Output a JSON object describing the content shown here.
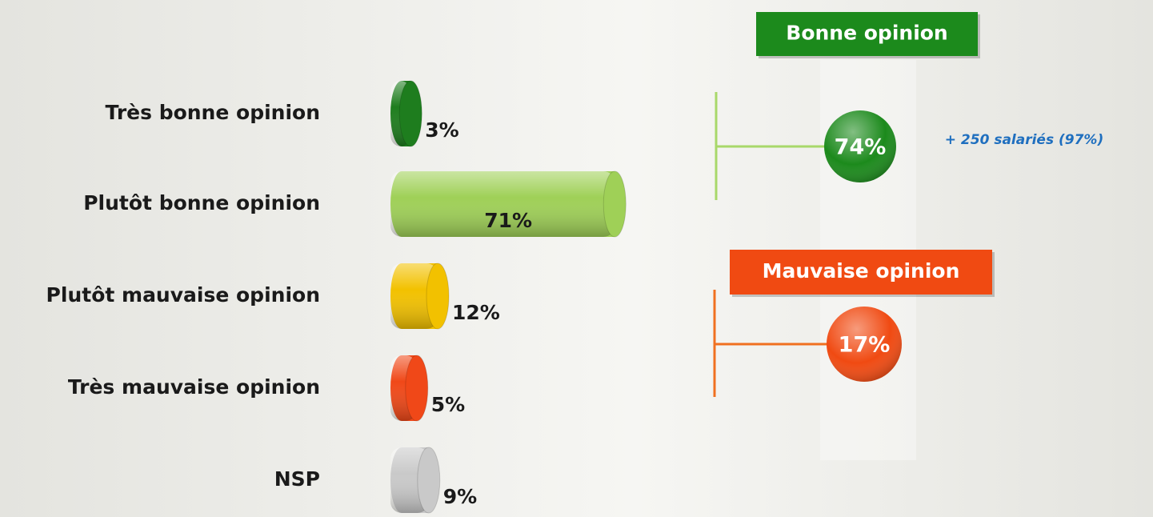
{
  "chart_data": {
    "type": "bar",
    "categories": [
      "Très bonne opinion",
      "Plutôt bonne opinion",
      "Plutôt mauvaise opinion",
      "Très mauvaise opinion",
      "NSP"
    ],
    "values": [
      3,
      71,
      12,
      5,
      9
    ],
    "value_labels": [
      "3%",
      "71%",
      "12%",
      "5%",
      "9%"
    ],
    "colors": [
      "#1e7d1e",
      "#9fd057",
      "#f2c100",
      "#f04818",
      "#c9c9c9"
    ],
    "summary": [
      {
        "label": "Bonne opinion",
        "value": 74,
        "value_label": "74%",
        "color": "#1c8a1c",
        "bracket_color": "#a8d86a"
      },
      {
        "label": "Mauvaise opinion",
        "value": 17,
        "value_label": "17%",
        "color": "#f04a12",
        "bracket_color": "#f07020"
      }
    ],
    "annotation": "+ 250 salariés (97%)"
  }
}
